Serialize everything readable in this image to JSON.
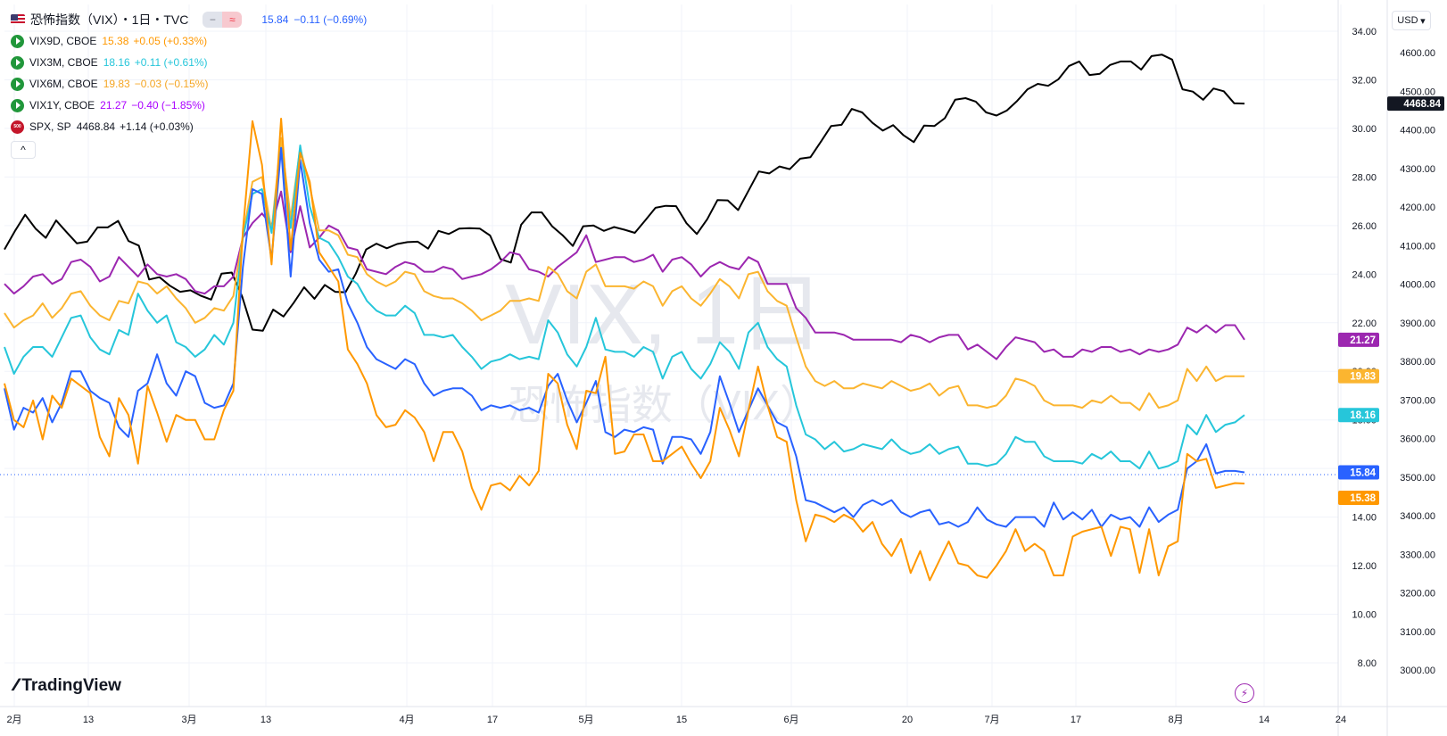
{
  "header": {
    "title": "恐怖指数（VIX）・1日・TVC",
    "main_value": "15.84",
    "main_change": "−0.11 (−0.69%)",
    "main_color": "#2962ff",
    "pill_left": "−",
    "pill_right": "≈"
  },
  "legend": [
    {
      "symbol": "VIX9D, CBOE",
      "value": "15.38",
      "change": "+0.05 (+0.33%)",
      "color": "#ff9800"
    },
    {
      "symbol": "VIX3M, CBOE",
      "value": "18.16",
      "change": "+0.11 (+0.61%)",
      "color": "#26c6da"
    },
    {
      "symbol": "VIX6M, CBOE",
      "value": "19.83",
      "change": "−0.03 (−0.15%)",
      "color": "#fbb530"
    },
    {
      "symbol": "VIX1Y, CBOE",
      "value": "21.27",
      "change": "−0.40 (−1.85%)",
      "color": "#aa00ff"
    },
    {
      "symbol": "SPX, SP",
      "value": "4468.84",
      "change": "+1.14 (+0.03%)",
      "color": "#131722"
    }
  ],
  "sp_icon_text": "500",
  "collapse_glyph": "^",
  "currency": "USD",
  "branding": "TradingView",
  "watermark": {
    "main": "VIX, 1日",
    "sub": "恐怖指数（VIX）"
  },
  "chart_data": {
    "type": "line",
    "x_ticks": [
      "2月",
      "13",
      "3月",
      "13",
      "4月",
      "17",
      "5月",
      "15",
      "6月",
      "20",
      "7月",
      "17",
      "8月",
      "14",
      "24"
    ],
    "y_left": {
      "min": 8,
      "max": 34,
      "ticks": [
        "34.00",
        "32.00",
        "30.00",
        "28.00",
        "26.00",
        "24.00",
        "22.00",
        "20.00",
        "18.00",
        "16.00",
        "14.00",
        "12.00",
        "10.00",
        "8.00"
      ]
    },
    "y_right": {
      "min": 3000,
      "max": 4600,
      "ticks": [
        "4600.00",
        "4500.00",
        "4400.00",
        "4300.00",
        "4200.00",
        "4100.00",
        "4000.00",
        "3900.00",
        "3800.00",
        "3700.00",
        "3600.00",
        "3500.00",
        "3400.00",
        "3300.00",
        "3200.00",
        "3100.00",
        "3000.00"
      ]
    },
    "grid": true,
    "series": [
      {
        "name": "SPX",
        "axis": "right",
        "color": "#000000",
        "last_label": "4468.84",
        "values": [
          4090,
          4137,
          4180,
          4144,
          4120,
          4165,
          4135,
          4106,
          4110,
          4147,
          4147,
          4164,
          4112,
          4100,
          4012,
          4018,
          3996,
          3980,
          3984,
          3970,
          3960,
          4027,
          4030,
          3968,
          3882,
          3879,
          3934,
          3916,
          3952,
          3992,
          3962,
          3998,
          3980,
          3979,
          4027,
          4090,
          4105,
          4093,
          4104,
          4109,
          4110,
          4092,
          4138,
          4130,
          4144,
          4145,
          4144,
          4126,
          4065,
          4056,
          4154,
          4186,
          4186,
          4150,
          4127,
          4099,
          4150,
          4152,
          4138,
          4148,
          4141,
          4133,
          4165,
          4198,
          4203,
          4202,
          4158,
          4130,
          4168,
          4218,
          4217,
          4192,
          4242,
          4292,
          4287,
          4305,
          4298,
          4325,
          4329,
          4369,
          4410,
          4413,
          4454,
          4445,
          4418,
          4398,
          4412,
          4386,
          4368,
          4411,
          4410,
          4430,
          4478,
          4482,
          4473,
          4445,
          4437,
          4450,
          4475,
          4505,
          4519,
          4514,
          4531,
          4565,
          4577,
          4542,
          4545,
          4568,
          4577,
          4577,
          4556,
          4591,
          4595,
          4582,
          4505,
          4499,
          4478,
          4507,
          4500,
          4469,
          4468
        ]
      },
      {
        "name": "VIX1Y",
        "axis": "left",
        "color": "#9c27b0",
        "last_label": "21.27",
        "values": [
          23.6,
          23.2,
          23.5,
          23.9,
          24.0,
          23.6,
          23.8,
          24.5,
          24.6,
          24.3,
          23.7,
          23.9,
          24.7,
          24.3,
          23.9,
          24.4,
          24.0,
          23.9,
          24.0,
          23.8,
          23.3,
          23.2,
          23.5,
          23.5,
          23.9,
          25.5,
          26.1,
          26.5,
          26.0,
          27.4,
          24.9,
          26.8,
          25.1,
          25.5,
          26.0,
          25.8,
          25.1,
          25.0,
          24.2,
          24.1,
          24.0,
          24.3,
          24.5,
          24.4,
          24.1,
          24.1,
          24.3,
          24.2,
          23.8,
          23.9,
          24.0,
          24.2,
          24.5,
          24.9,
          24.8,
          24.2,
          24.1,
          23.9,
          24.3,
          24.6,
          24.9,
          25.6,
          24.5,
          24.6,
          24.7,
          24.7,
          24.5,
          24.6,
          24.8,
          24.1,
          24.6,
          24.7,
          24.4,
          23.9,
          24.3,
          24.5,
          24.3,
          24.2,
          24.7,
          24.5,
          23.6,
          23.6,
          23.6,
          22.6,
          22.2,
          21.6,
          21.6,
          21.6,
          21.5,
          21.3,
          21.3,
          21.3,
          21.3,
          21.3,
          21.2,
          21.5,
          21.4,
          21.2,
          21.4,
          21.5,
          21.5,
          20.9,
          21.1,
          20.8,
          20.5,
          21.0,
          21.4,
          21.3,
          21.2,
          20.8,
          20.9,
          20.6,
          20.6,
          20.9,
          20.8,
          21.0,
          21.0,
          20.8,
          20.9,
          20.7,
          20.9,
          20.8,
          20.9,
          21.1,
          21.8,
          21.6,
          21.9,
          21.6,
          21.9,
          21.9,
          21.3
        ]
      },
      {
        "name": "VIX6M",
        "axis": "left",
        "color": "#fbb530",
        "last_label": "19.83",
        "values": [
          22.4,
          21.8,
          22.1,
          22.3,
          22.8,
          22.2,
          22.6,
          23.2,
          23.3,
          22.7,
          22.3,
          22.1,
          22.9,
          22.8,
          23.7,
          23.6,
          23.2,
          23.5,
          23.0,
          22.6,
          22.0,
          22.2,
          22.6,
          22.5,
          23.1,
          25.6,
          27.8,
          28.0,
          25.8,
          29.6,
          26.3,
          29.2,
          27.6,
          25.8,
          25.8,
          25.6,
          24.8,
          24.7,
          24.0,
          23.7,
          23.5,
          23.7,
          24.1,
          24.0,
          23.3,
          23.1,
          23.0,
          23.0,
          22.8,
          22.5,
          22.1,
          22.3,
          22.5,
          22.9,
          22.9,
          23.0,
          22.9,
          24.3,
          24.0,
          23.3,
          23.0,
          24.1,
          24.4,
          23.5,
          23.5,
          23.5,
          23.4,
          23.7,
          23.5,
          22.7,
          23.3,
          23.5,
          23.0,
          22.7,
          23.2,
          23.8,
          23.5,
          23.0,
          24.0,
          24.1,
          23.3,
          22.9,
          22.7,
          21.4,
          20.2,
          19.6,
          19.4,
          19.6,
          19.3,
          19.3,
          19.5,
          19.4,
          19.3,
          19.6,
          19.4,
          19.2,
          19.3,
          19.5,
          19.0,
          19.3,
          19.4,
          18.6,
          18.6,
          18.5,
          18.6,
          19.0,
          19.7,
          19.6,
          19.4,
          18.8,
          18.6,
          18.6,
          18.6,
          18.5,
          18.8,
          18.7,
          19.0,
          18.7,
          18.7,
          18.4,
          19.1,
          18.5,
          18.6,
          18.8,
          20.1,
          19.6,
          20.2,
          19.6,
          19.8,
          19.8,
          19.8
        ]
      },
      {
        "name": "VIX3M",
        "axis": "left",
        "color": "#26c6da",
        "last_label": "18.16",
        "values": [
          21.0,
          19.9,
          20.6,
          21.0,
          21.0,
          20.6,
          21.4,
          22.2,
          22.3,
          21.4,
          20.9,
          20.7,
          21.7,
          21.5,
          23.2,
          22.5,
          22.0,
          22.3,
          21.2,
          21.0,
          20.6,
          20.9,
          21.5,
          21.1,
          22.0,
          25.5,
          27.3,
          27.5,
          25.7,
          29.2,
          25.9,
          29.3,
          26.8,
          25.5,
          25.3,
          24.7,
          23.9,
          23.6,
          22.9,
          22.5,
          22.3,
          22.3,
          22.7,
          22.4,
          21.5,
          21.5,
          21.4,
          21.5,
          21.0,
          20.6,
          20.1,
          20.4,
          20.5,
          20.7,
          20.5,
          20.6,
          20.5,
          22.1,
          21.6,
          20.7,
          20.2,
          21.0,
          22.2,
          20.9,
          20.8,
          20.8,
          20.6,
          21.0,
          20.8,
          19.7,
          20.6,
          20.8,
          20.1,
          19.7,
          20.3,
          21.2,
          20.8,
          20.1,
          21.6,
          22.0,
          21.0,
          20.5,
          20.2,
          18.6,
          17.4,
          17.2,
          16.8,
          17.1,
          16.7,
          16.8,
          17.0,
          16.9,
          16.8,
          17.2,
          16.8,
          16.6,
          16.7,
          17.0,
          16.6,
          16.8,
          16.9,
          16.2,
          16.2,
          16.1,
          16.2,
          16.6,
          17.3,
          17.1,
          17.1,
          16.5,
          16.3,
          16.3,
          16.3,
          16.2,
          16.6,
          16.4,
          16.7,
          16.3,
          16.3,
          16.0,
          16.7,
          16.0,
          16.1,
          16.3,
          17.8,
          17.4,
          18.2,
          17.5,
          17.8,
          17.9,
          18.2
        ]
      },
      {
        "name": "VIX",
        "axis": "left",
        "color": "#2962ff",
        "last_label": "15.84",
        "values": [
          19.3,
          17.6,
          18.5,
          18.3,
          18.9,
          17.9,
          18.7,
          20.0,
          20.0,
          19.2,
          18.9,
          18.7,
          17.7,
          17.3,
          19.2,
          19.5,
          20.7,
          19.5,
          19.0,
          20.0,
          19.8,
          18.7,
          18.5,
          18.6,
          19.5,
          24.3,
          27.5,
          27.3,
          24.6,
          29.2,
          23.9,
          28.7,
          26.1,
          24.6,
          24.1,
          24.2,
          22.8,
          22.0,
          21.0,
          20.5,
          20.3,
          20.1,
          20.5,
          20.3,
          19.5,
          19.0,
          19.2,
          19.3,
          19.3,
          19.0,
          18.4,
          18.6,
          18.5,
          18.6,
          18.4,
          18.5,
          18.3,
          19.4,
          19.9,
          18.8,
          17.9,
          18.7,
          19.6,
          17.5,
          17.3,
          17.6,
          17.5,
          17.7,
          17.6,
          16.2,
          17.3,
          17.3,
          17.2,
          16.6,
          17.5,
          19.8,
          18.7,
          17.5,
          18.4,
          19.3,
          18.6,
          17.9,
          17.7,
          16.5,
          14.7,
          14.6,
          14.4,
          14.2,
          14.4,
          14.0,
          14.5,
          14.7,
          14.5,
          14.7,
          14.2,
          14.0,
          14.2,
          14.3,
          13.7,
          13.8,
          13.6,
          13.8,
          14.4,
          13.9,
          13.7,
          13.6,
          14.0,
          14.0,
          14.0,
          13.6,
          14.6,
          13.9,
          14.2,
          13.9,
          14.3,
          13.6,
          14.1,
          13.9,
          14.0,
          13.6,
          14.4,
          13.8,
          14.1,
          14.3,
          16.0,
          16.3,
          17.0,
          15.8,
          15.9,
          15.9,
          15.84
        ]
      },
      {
        "name": "VIX9D",
        "axis": "left",
        "color": "#ff9800",
        "last_label": "15.38",
        "values": [
          19.5,
          18.0,
          17.7,
          18.8,
          17.2,
          19.0,
          18.5,
          19.7,
          19.4,
          19.1,
          17.3,
          16.5,
          18.9,
          18.2,
          16.2,
          19.4,
          18.3,
          17.1,
          18.2,
          18.0,
          18.0,
          17.2,
          17.2,
          18.4,
          19.2,
          25.8,
          30.3,
          28.5,
          24.4,
          30.4,
          25.0,
          29.0,
          27.8,
          24.9,
          24.3,
          23.7,
          20.9,
          20.3,
          19.5,
          18.2,
          17.7,
          17.8,
          18.4,
          18.1,
          17.5,
          16.3,
          17.5,
          17.5,
          16.7,
          15.2,
          14.3,
          15.3,
          15.4,
          15.1,
          15.7,
          15.3,
          15.9,
          19.9,
          19.5,
          17.8,
          16.8,
          19.2,
          19.1,
          20.6,
          16.6,
          16.7,
          17.4,
          17.4,
          16.3,
          16.3,
          16.6,
          16.9,
          16.2,
          15.6,
          16.3,
          18.5,
          17.6,
          16.5,
          18.4,
          20.2,
          18.6,
          17.3,
          17.1,
          14.7,
          13.0,
          14.1,
          14.0,
          13.8,
          14.1,
          13.9,
          13.4,
          13.8,
          12.9,
          12.4,
          13.1,
          11.7,
          12.6,
          11.4,
          12.2,
          13.0,
          12.1,
          12.0,
          11.6,
          11.5,
          12.0,
          12.6,
          13.5,
          12.6,
          12.9,
          12.6,
          11.6,
          11.6,
          13.2,
          13.4,
          13.5,
          13.6,
          12.4,
          13.6,
          13.5,
          11.7,
          13.5,
          11.6,
          12.8,
          13.0,
          16.6,
          16.3,
          16.4,
          15.2,
          15.3,
          15.4,
          15.38
        ]
      }
    ]
  }
}
